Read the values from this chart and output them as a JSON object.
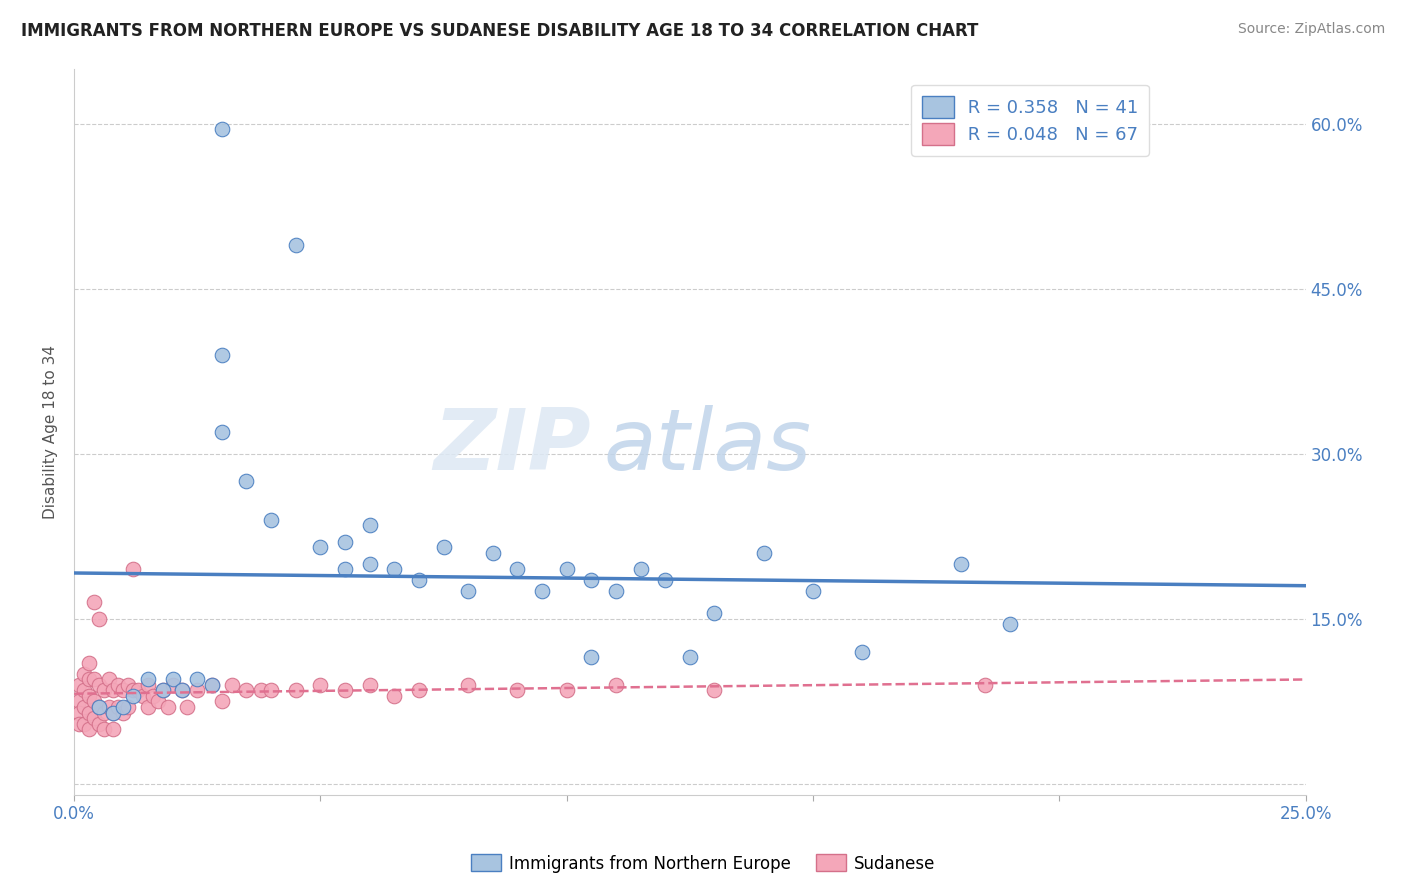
{
  "title": "IMMIGRANTS FROM NORTHERN EUROPE VS SUDANESE DISABILITY AGE 18 TO 34 CORRELATION CHART",
  "source": "Source: ZipAtlas.com",
  "ylabel": "Disability Age 18 to 34",
  "xlim": [
    0.0,
    0.25
  ],
  "ylim": [
    -0.01,
    0.65
  ],
  "xticklabels": [
    "0.0%",
    "",
    "",
    "",
    "",
    "25.0%"
  ],
  "yticklabels": [
    "",
    "15.0%",
    "30.0%",
    "45.0%",
    "60.0%"
  ],
  "legend_r1": "R = 0.358",
  "legend_n1": "N = 41",
  "legend_r2": "R = 0.048",
  "legend_n2": "N = 67",
  "blue_color": "#a8c4e0",
  "pink_color": "#f4a7b9",
  "blue_line_color": "#4a7fc1",
  "pink_line_color": "#e07090",
  "watermark_zip": "ZIP",
  "watermark_atlas": "atlas",
  "blue_x": [
    0.03,
    0.045,
    0.03,
    0.03,
    0.035,
    0.04,
    0.05,
    0.055,
    0.055,
    0.06,
    0.06,
    0.065,
    0.07,
    0.075,
    0.08,
    0.085,
    0.09,
    0.095,
    0.1,
    0.105,
    0.105,
    0.11,
    0.115,
    0.12,
    0.125,
    0.13,
    0.14,
    0.15,
    0.16,
    0.18,
    0.19,
    0.005,
    0.008,
    0.01,
    0.012,
    0.015,
    0.018,
    0.02,
    0.022,
    0.025,
    0.028
  ],
  "blue_y": [
    0.595,
    0.49,
    0.39,
    0.32,
    0.275,
    0.24,
    0.215,
    0.195,
    0.22,
    0.2,
    0.235,
    0.195,
    0.185,
    0.215,
    0.175,
    0.21,
    0.195,
    0.175,
    0.195,
    0.115,
    0.185,
    0.175,
    0.195,
    0.185,
    0.115,
    0.155,
    0.21,
    0.175,
    0.12,
    0.2,
    0.145,
    0.07,
    0.065,
    0.07,
    0.08,
    0.095,
    0.085,
    0.095,
    0.085,
    0.095,
    0.09
  ],
  "pink_x": [
    0.001,
    0.001,
    0.001,
    0.001,
    0.002,
    0.002,
    0.002,
    0.002,
    0.003,
    0.003,
    0.003,
    0.003,
    0.003,
    0.004,
    0.004,
    0.004,
    0.004,
    0.005,
    0.005,
    0.005,
    0.005,
    0.006,
    0.006,
    0.006,
    0.007,
    0.007,
    0.008,
    0.008,
    0.008,
    0.009,
    0.009,
    0.01,
    0.01,
    0.011,
    0.011,
    0.012,
    0.012,
    0.013,
    0.014,
    0.015,
    0.015,
    0.016,
    0.017,
    0.018,
    0.019,
    0.02,
    0.022,
    0.023,
    0.025,
    0.028,
    0.03,
    0.032,
    0.035,
    0.038,
    0.04,
    0.045,
    0.05,
    0.055,
    0.06,
    0.065,
    0.07,
    0.08,
    0.09,
    0.1,
    0.11,
    0.13,
    0.185
  ],
  "pink_y": [
    0.09,
    0.075,
    0.065,
    0.055,
    0.1,
    0.085,
    0.07,
    0.055,
    0.095,
    0.08,
    0.065,
    0.05,
    0.11,
    0.095,
    0.075,
    0.06,
    0.165,
    0.09,
    0.07,
    0.055,
    0.15,
    0.085,
    0.065,
    0.05,
    0.095,
    0.07,
    0.085,
    0.065,
    0.05,
    0.09,
    0.07,
    0.085,
    0.065,
    0.09,
    0.07,
    0.085,
    0.195,
    0.085,
    0.08,
    0.09,
    0.07,
    0.08,
    0.075,
    0.085,
    0.07,
    0.09,
    0.085,
    0.07,
    0.085,
    0.09,
    0.075,
    0.09,
    0.085,
    0.085,
    0.085,
    0.085,
    0.09,
    0.085,
    0.09,
    0.08,
    0.085,
    0.09,
    0.085,
    0.085,
    0.09,
    0.085,
    0.09
  ]
}
